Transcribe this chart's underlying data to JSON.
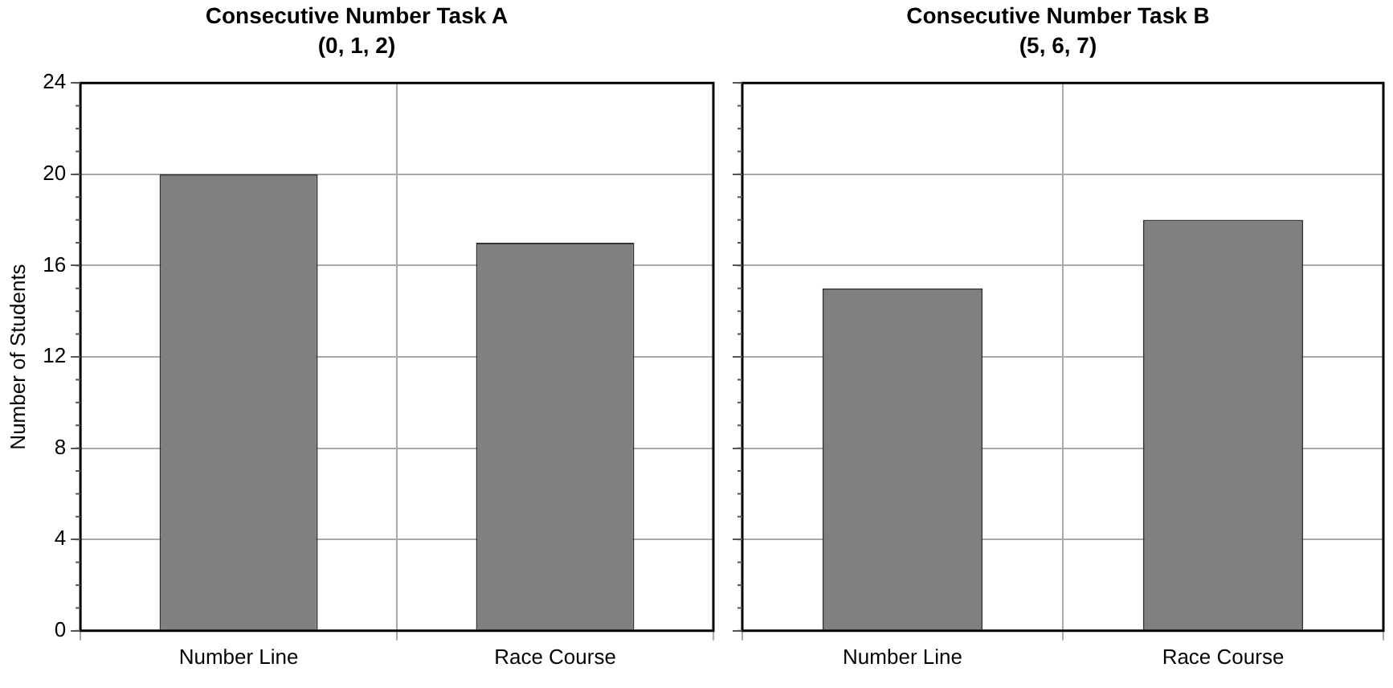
{
  "chart_data": [
    {
      "type": "bar",
      "title": "Consecutive Number Task A",
      "subtitle": "(0, 1, 2)",
      "ylabel": "Number of Students",
      "categories": [
        "Number Line",
        "Race Course"
      ],
      "values": [
        20,
        17
      ],
      "color": "#808080",
      "ylim": [
        0,
        24
      ],
      "yticks": [
        0,
        4,
        8,
        12,
        16,
        20,
        24
      ],
      "grid": true
    },
    {
      "type": "bar",
      "title": "Consecutive Number Task B",
      "subtitle": "(5, 6, 7)",
      "categories": [
        "Number Line",
        "Race Course"
      ],
      "values": [
        15,
        18
      ],
      "color": "#808080",
      "ylim": [
        0,
        24
      ],
      "yticks": [
        0,
        4,
        8,
        12,
        16,
        20,
        24
      ],
      "grid": true,
      "tick_labels": "x"
    }
  ]
}
